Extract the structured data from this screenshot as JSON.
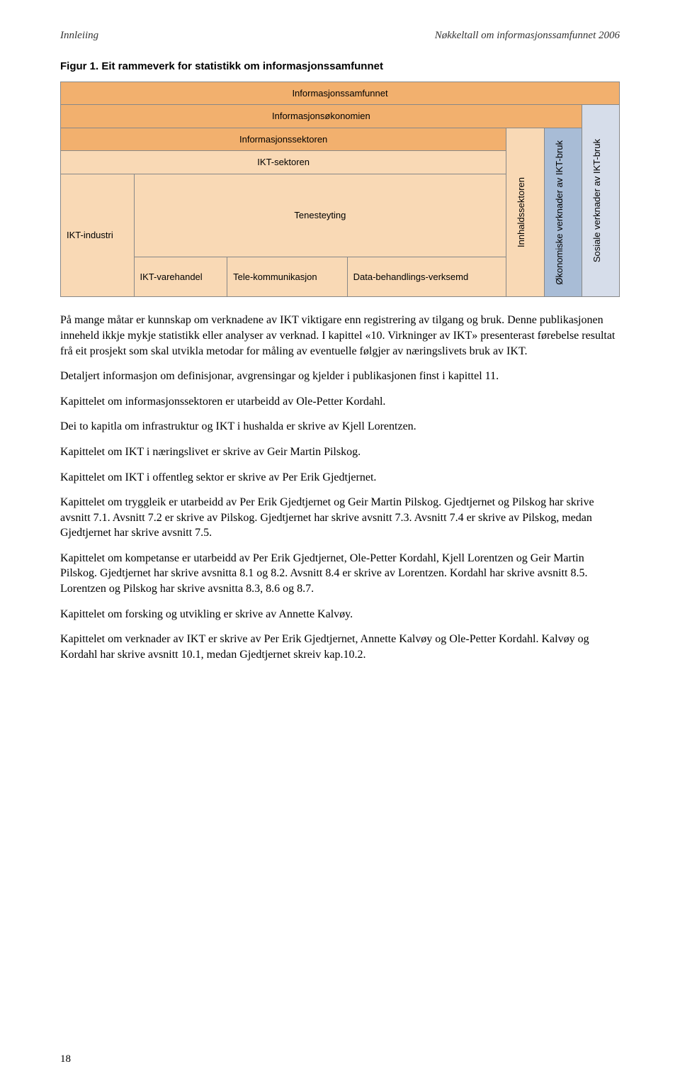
{
  "header": {
    "left": "Innleiing",
    "right": "Nøkkeltall om informasjonssamfunnet 2006"
  },
  "figure": {
    "title": "Figur 1. Eit rammeverk for statistikk om informasjonssamfunnet",
    "cells": {
      "r1c1": "Informasjonssamfunnet",
      "r2c1": "Informasjonsøkonomien",
      "r2c2": "Sosiale verknader av IKT-bruk",
      "r3c1": "Informasjonssektoren",
      "r3c2": "Innhaldssektoren",
      "r3c3": "Økonomiske verknader av IKT-bruk",
      "r4c1": "IKT-sektoren",
      "r5c1": "IKT-industri",
      "r5c2": "Tenesteyting",
      "r6c1": "IKT-varehandel",
      "r6c2": "Tele-kommunikasjon",
      "r6c3": "Data-behandlings-verksemd"
    }
  },
  "paragraphs": {
    "p1": "På mange måtar er kunnskap om verknadene av IKT viktigare enn registrering av tilgang og bruk. Denne publikasjonen inneheld ikkje mykje statistikk eller analyser av verknad. I kapittel «10. Virkninger av IKT» presenterast førebelse resultat frå eit prosjekt som skal utvikla metodar for måling av eventuelle følgjer av næringslivets bruk av IKT.",
    "p2": "Detaljert informasjon om definisjonar, avgrensingar og kjelder i publikasjonen finst i kapittel 11.",
    "p3": "Kapittelet om informasjonssektoren er utarbeidd av Ole-Petter Kordahl.",
    "p4": "Dei to kapitla om infrastruktur og IKT i hushalda er skrive av Kjell Lorentzen.",
    "p5": "Kapittelet om IKT i næringslivet er skrive av Geir Martin Pilskog.",
    "p6": "Kapittelet om IKT i offentleg sektor er skrive av Per Erik Gjedtjernet.",
    "p7": "Kapittelet om tryggleik er utarbeidd av Per Erik Gjedtjernet og Geir Martin Pilskog. Gjedtjernet og Pilskog har skrive avsnitt 7.1. Avsnitt 7.2 er skrive av Pilskog. Gjedtjernet har skrive avsnitt 7.3. Avsnitt 7.4 er skrive av Pilskog, medan Gjedtjernet har skrive avsnitt 7.5.",
    "p8": "Kapittelet om kompetanse er utarbeidd av Per Erik Gjedtjernet, Ole-Petter Kordahl, Kjell Lorentzen og Geir Martin Pilskog. Gjedtjernet har skrive avsnitta 8.1 og 8.2. Avsnitt 8.4 er skrive av Lorentzen. Kordahl har skrive avsnitt 8.5. Lorentzen og Pilskog har skrive avsnitta 8.3, 8.6 og 8.7.",
    "p9": "Kapittelet om forsking og utvikling er skrive av Annette Kalvøy.",
    "p10": "Kapittelet om verknader av IKT er skrive av Per Erik Gjedtjernet, Annette Kalvøy og Ole-Petter Kordahl. Kalvøy og Kordahl har skrive avsnitt 10.1, medan Gjedtjernet skreiv kap.10.2."
  },
  "pagenum": "18",
  "colors": {
    "peach_dark": "#f2b06e",
    "peach_light": "#f9d9b5",
    "blue_mid": "#a8bcd6",
    "blue_light": "#d6ddea",
    "border": "#888888",
    "text": "#000000",
    "bg": "#ffffff"
  }
}
